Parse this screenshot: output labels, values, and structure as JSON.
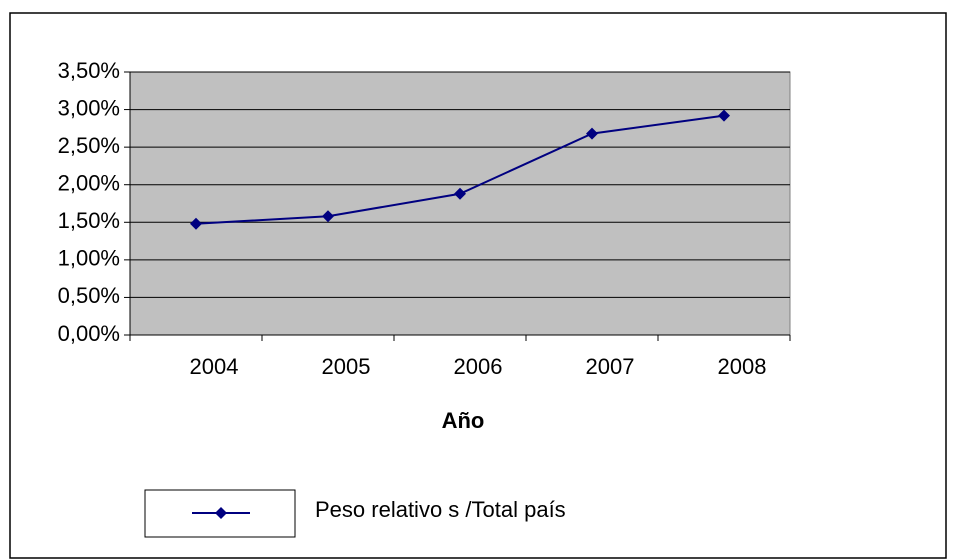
{
  "chart_data": {
    "type": "line",
    "x_label": "Año",
    "categories": [
      "2004",
      "2005",
      "2006",
      "2007",
      "2008"
    ],
    "series": [
      {
        "name": "Peso relativo s /Total país",
        "color": "#000080",
        "values": [
          1.48,
          1.58,
          1.88,
          2.68,
          2.92
        ]
      }
    ],
    "ylim": [
      0,
      3.5
    ],
    "yticks": [
      {
        "value": 0,
        "label": "0,00%"
      },
      {
        "value": 0.5,
        "label": "0,50%"
      },
      {
        "value": 1,
        "label": "1,00%"
      },
      {
        "value": 1.5,
        "label": "1,50%"
      },
      {
        "value": 2,
        "label": "2,00%"
      },
      {
        "value": 2.5,
        "label": "2,50%"
      },
      {
        "value": 3,
        "label": "3,00%"
      },
      {
        "value": 3.5,
        "label": "3,50%"
      }
    ],
    "grid": true,
    "legend": "bottom",
    "plot_background": "#c0c0c0"
  }
}
